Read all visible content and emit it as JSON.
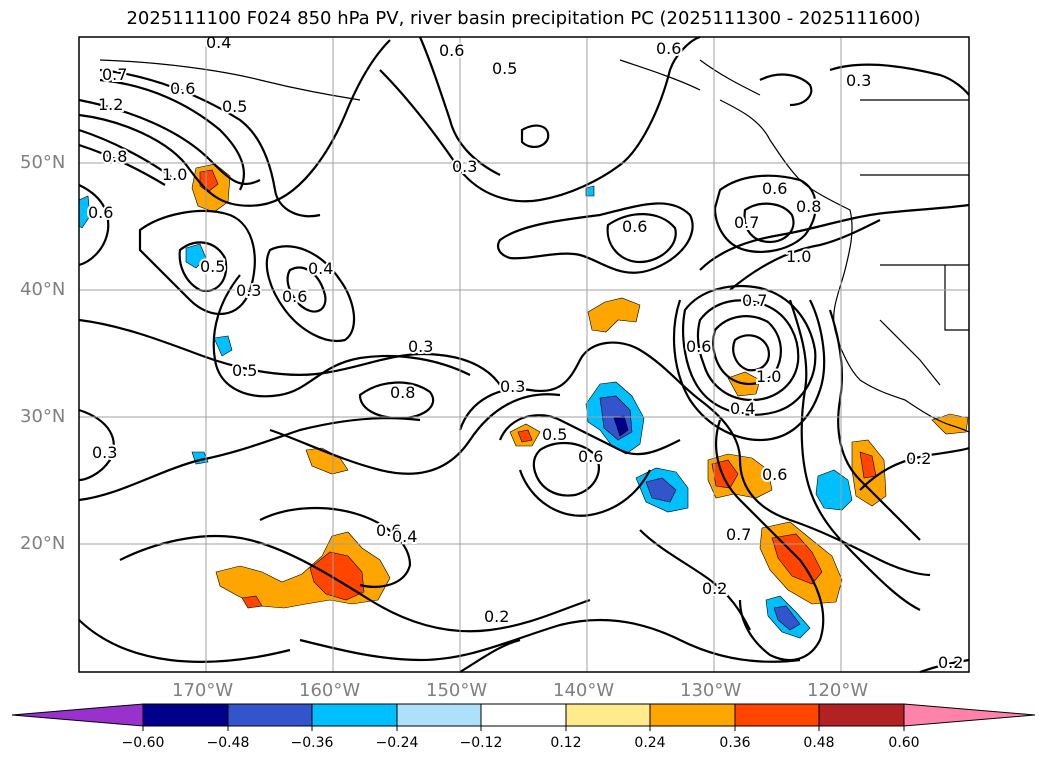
{
  "title": "2025111100 F024 850 hPa PV, river basin precipitation PC (2025111300 - 2025111600)",
  "map": {
    "lat_labels": [
      "50°N",
      "40°N",
      "30°N",
      "20°N"
    ],
    "lon_labels": [
      "170°W",
      "160°W",
      "150°W",
      "140°W",
      "130°W",
      "120°W"
    ],
    "contour_labels": [
      "0.4",
      "0.6",
      "0.6",
      "0.5",
      "0.3",
      "0.7",
      "0.6",
      "0.5",
      "1.2",
      "0.8",
      "1.0",
      "0.6",
      "0.3",
      "0.6",
      "0.6",
      "0.8",
      "0.7",
      "1.0",
      "0.5",
      "0.3",
      "0.4",
      "0.6",
      "0.7",
      "0.3",
      "0.5",
      "0.6",
      "0.8",
      "0.3",
      "0.4",
      "0.5",
      "0.6",
      "1.0",
      "0.6",
      "0.7",
      "0.3",
      "0.6",
      "0.4",
      "0.2",
      "0.2",
      "0.2",
      "0.3",
      "0.2"
    ],
    "colors": {
      "contour": "#000000",
      "grid": "#a0a0a0",
      "coast": "#000000"
    }
  },
  "colorbar": {
    "ticks": [
      "−0.60",
      "−0.48",
      "−0.36",
      "−0.24",
      "−0.12",
      "0.12",
      "0.24",
      "0.36",
      "0.48",
      "0.60"
    ],
    "colors": [
      "#9932CC",
      "#00008B",
      "#3355CC",
      "#00BFFF",
      "#ADE0FA",
      "#FFFFFF",
      "#FFEA8C",
      "#FFA500",
      "#FF4500",
      "#B22222",
      "#FF82AB"
    ]
  }
}
